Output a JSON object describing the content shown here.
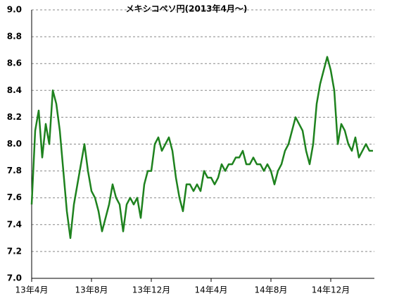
{
  "chart_data": {
    "type": "line",
    "title": "メキシコペソ円(2013年4月～)",
    "categories": [
      "13年4月",
      null,
      null,
      null,
      null,
      null,
      null,
      null,
      null,
      null,
      null,
      null,
      null,
      null,
      null,
      null,
      null,
      "13年8月",
      null,
      null,
      null,
      null,
      null,
      null,
      null,
      null,
      null,
      null,
      null,
      null,
      null,
      null,
      null,
      null,
      "13年12月",
      null,
      null,
      null,
      null,
      null,
      null,
      null,
      null,
      null,
      null,
      null,
      null,
      null,
      null,
      null,
      null,
      "14年4月",
      null,
      null,
      null,
      null,
      null,
      null,
      null,
      null,
      null,
      null,
      null,
      null,
      null,
      null,
      null,
      null,
      "14年8月",
      null,
      null,
      null,
      null,
      null,
      null,
      null,
      null,
      null,
      null,
      null,
      null,
      null,
      null,
      null,
      null,
      "14年12月",
      null,
      null,
      null,
      null,
      null,
      null,
      null,
      null,
      null,
      null,
      null,
      null
    ],
    "series": [
      {
        "name": "メキシコペソ円",
        "color": "#1e821e",
        "values": [
          7.55,
          8.1,
          8.25,
          7.9,
          8.15,
          8.0,
          8.4,
          8.3,
          8.1,
          7.8,
          7.5,
          7.3,
          7.55,
          7.7,
          7.85,
          8.0,
          7.8,
          7.65,
          7.6,
          7.5,
          7.35,
          7.45,
          7.55,
          7.7,
          7.6,
          7.55,
          7.35,
          7.55,
          7.6,
          7.55,
          7.6,
          7.45,
          7.7,
          7.8,
          7.8,
          8.0,
          8.05,
          7.95,
          8.0,
          8.05,
          7.95,
          7.75,
          7.6,
          7.5,
          7.7,
          7.7,
          7.65,
          7.7,
          7.65,
          7.8,
          7.75,
          7.75,
          7.7,
          7.75,
          7.85,
          7.8,
          7.85,
          7.85,
          7.9,
          7.9,
          7.95,
          7.85,
          7.85,
          7.9,
          7.85,
          7.85,
          7.8,
          7.85,
          7.8,
          7.7,
          7.8,
          7.85,
          7.95,
          8.0,
          8.1,
          8.2,
          8.15,
          8.1,
          7.95,
          7.85,
          8.0,
          8.3,
          8.45,
          8.55,
          8.65,
          8.55,
          8.4,
          8.0,
          8.15,
          8.1,
          8.0,
          7.95,
          8.05,
          7.9,
          7.95,
          8.0,
          7.95,
          7.95
        ]
      }
    ],
    "ylim": [
      7.0,
      9.0
    ],
    "yticks": [
      {
        "value": 7.0,
        "label": "7.0"
      },
      7.2,
      7.4,
      7.6,
      7.8,
      {
        "value": 8.0,
        "label": "8.0"
      },
      8.2,
      8.4,
      8.6,
      8.8,
      {
        "value": 9.0,
        "label": "9.0"
      }
    ],
    "grid": true
  }
}
